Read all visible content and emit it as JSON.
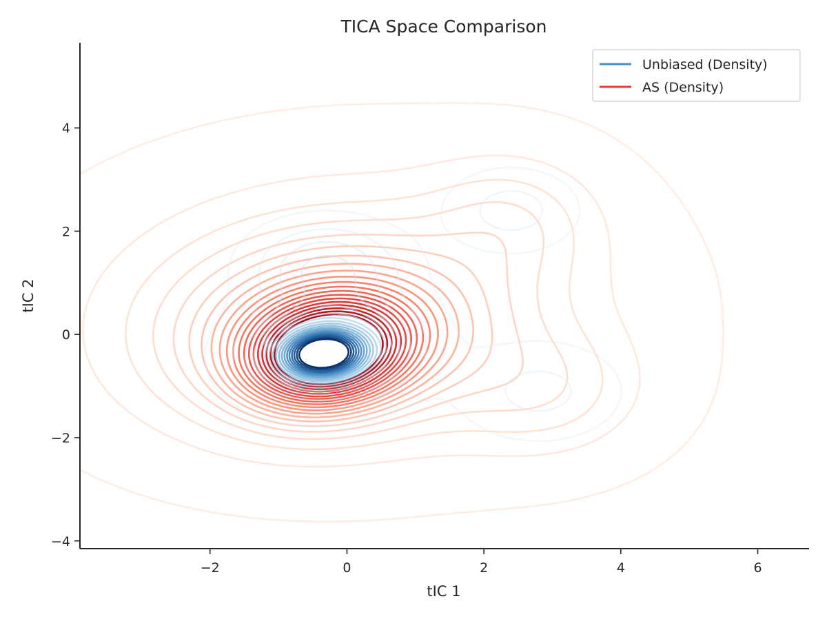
{
  "chart_data": {
    "type": "contour",
    "title": "TICA Space Comparison",
    "xlabel": "tIC 1",
    "ylabel": "tIC 2",
    "xlim": [
      -3.9,
      6.75
    ],
    "ylim": [
      -4.15,
      5.65
    ],
    "xticks": [
      -2,
      0,
      2,
      4,
      6
    ],
    "yticks": [
      -4,
      -2,
      0,
      2,
      4
    ],
    "xtick_labels": [
      "−2",
      "0",
      "2",
      "4",
      "6"
    ],
    "ytick_labels": [
      "−4",
      "−2",
      "0",
      "2",
      "4"
    ],
    "grid": false,
    "legend_position": "upper-right",
    "series": [
      {
        "name": "Unbiased (Density)",
        "color": "#4292c6",
        "colormap": "Blues",
        "peaks": [
          {
            "x": -0.35,
            "y": -0.38,
            "weight": 0.55
          },
          {
            "x": -0.3,
            "y": 1.3,
            "weight": 0.22
          },
          {
            "x": 2.4,
            "y": 2.4,
            "weight": 0.12
          },
          {
            "x": 2.8,
            "y": -1.1,
            "weight": 0.11
          }
        ]
      },
      {
        "name": "AS (Density)",
        "color": "#ef3b2c",
        "colormap": "Reds",
        "peaks": [
          {
            "x": -0.3,
            "y": -0.4,
            "weight": 0.7
          },
          {
            "x": 2.4,
            "y": 2.2,
            "weight": 0.15
          },
          {
            "x": 2.9,
            "y": -1.1,
            "weight": 0.15
          }
        ]
      }
    ]
  }
}
